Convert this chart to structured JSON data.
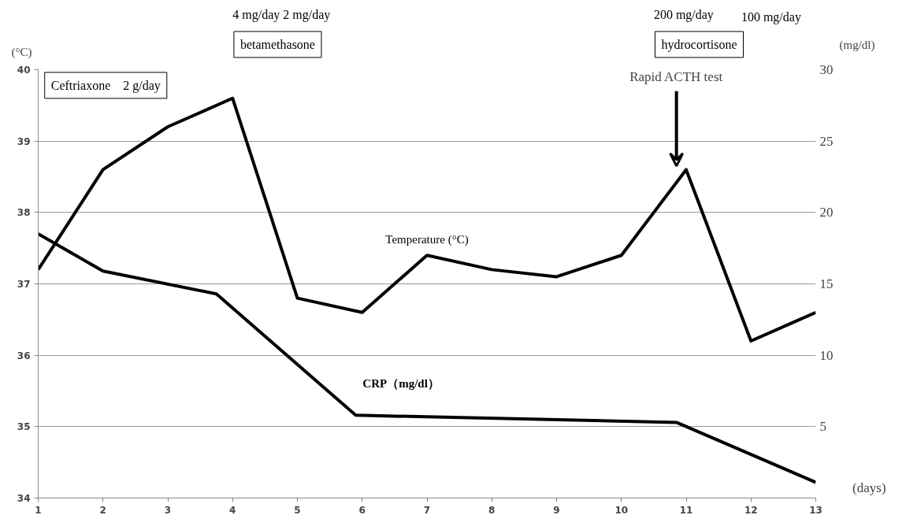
{
  "chart_data": {
    "type": "line",
    "xlabel": "(days)",
    "ylabel": "(°C)",
    "y2label": "(mg/dl)",
    "x": [
      1,
      2,
      3,
      4,
      5,
      6,
      7,
      8,
      9,
      10,
      11,
      12,
      13
    ],
    "xlim": [
      1,
      13
    ],
    "xticks": [
      1,
      2,
      3,
      4,
      5,
      6,
      7,
      8,
      9,
      10,
      11,
      12,
      13
    ],
    "ylim": [
      34,
      40
    ],
    "yticks": [
      34,
      35,
      36,
      37,
      38,
      39,
      40
    ],
    "y2lim": [
      0,
      30
    ],
    "y2ticks": [
      5,
      10,
      15,
      20,
      25,
      30
    ],
    "grid": "y",
    "line_style": "solid",
    "series": [
      {
        "name": "Temperature (°C)",
        "color": "#000000",
        "values": [
          37.2,
          38.6,
          39.2,
          39.6,
          36.8,
          36.6,
          37.4,
          37.2,
          37.1,
          37.4,
          38.6,
          36.2,
          36.6
        ]
      },
      {
        "name": "CRP（mg/dl）",
        "color": "#000000",
        "axis": "y2",
        "x": [
          1,
          2,
          3.75,
          5.9,
          10.85,
          13
        ],
        "values": [
          18.5,
          15.9,
          14.3,
          5.8,
          5.3,
          1.1
        ]
      }
    ],
    "annotations": [
      "Ceftriaxone　2 g/day",
      "4 mg/day  2 mg/day",
      "betamethasone",
      "200 mg/day",
      "100 mg/day",
      "hydrocortisone",
      "Rapid ACTH test"
    ]
  }
}
